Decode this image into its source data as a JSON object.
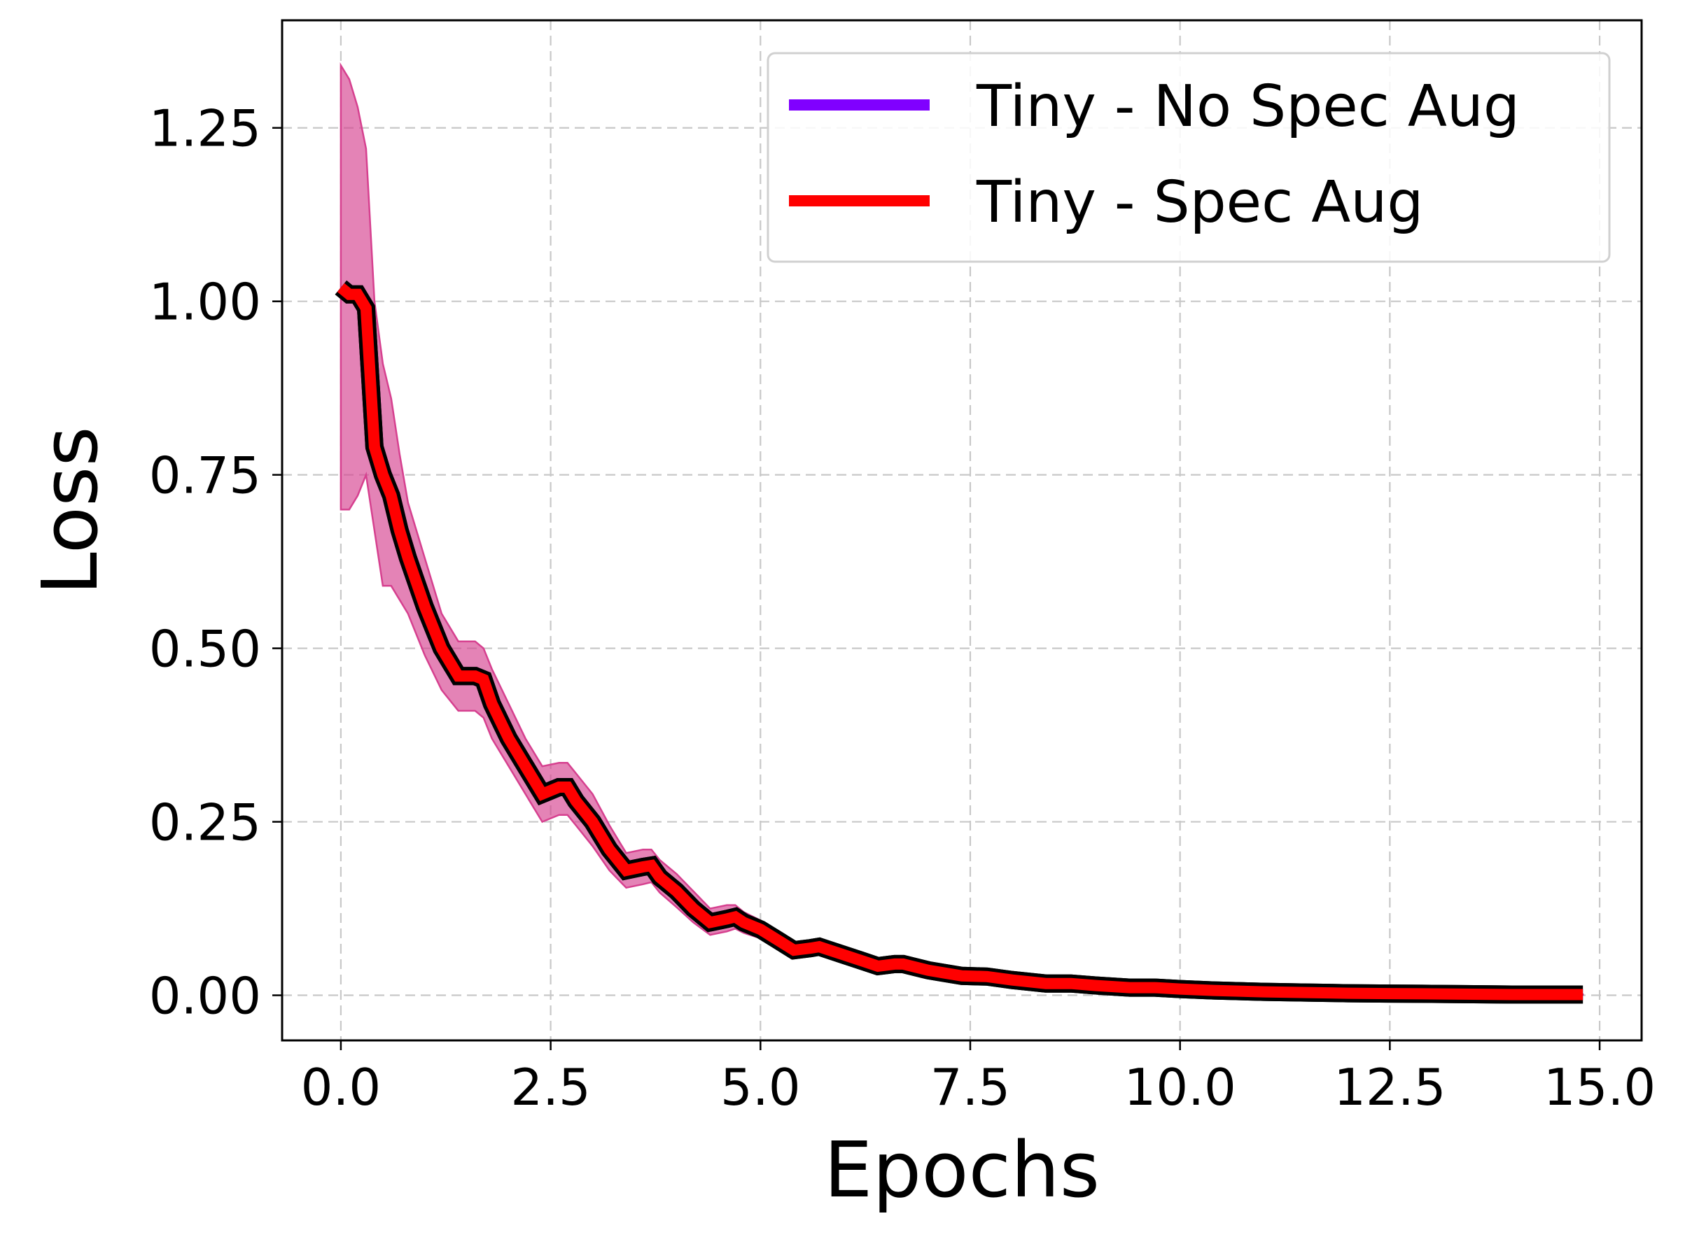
{
  "chart_data": {
    "type": "line",
    "xlabel": "Epochs",
    "ylabel": "Loss",
    "xlim": [
      -0.7,
      15.5
    ],
    "ylim": [
      -0.065,
      1.405
    ],
    "xticks": [
      0.0,
      2.5,
      5.0,
      7.5,
      10.0,
      12.5,
      15.0
    ],
    "xtick_labels": [
      "0.0",
      "2.5",
      "5.0",
      "7.5",
      "10.0",
      "12.5",
      "15.0"
    ],
    "yticks": [
      0.0,
      0.25,
      0.5,
      0.75,
      1.0,
      1.25
    ],
    "ytick_labels": [
      "0.00",
      "0.25",
      "0.50",
      "0.75",
      "1.00",
      "1.25"
    ],
    "grid": true,
    "legend_position": "top-right",
    "series": [
      {
        "name": "Tiny - No Spec Aug",
        "color": "#8000ff",
        "x": [
          0.0,
          0.1,
          0.2,
          0.3,
          0.4,
          0.5,
          0.6,
          0.7,
          0.8,
          1.0,
          1.2,
          1.4,
          1.6,
          1.7,
          1.8,
          2.0,
          2.2,
          2.4,
          2.6,
          2.7,
          2.8,
          3.0,
          3.2,
          3.4,
          3.6,
          3.7,
          3.8,
          4.0,
          4.2,
          4.4,
          4.6,
          4.7,
          4.8,
          5.0,
          5.2,
          5.4,
          5.6,
          5.7,
          5.8,
          6.0,
          6.2,
          6.4,
          6.6,
          6.7,
          6.8,
          7.0,
          7.2,
          7.4,
          7.7,
          8.0,
          8.4,
          8.7,
          9.0,
          9.4,
          9.7,
          10.0,
          10.4,
          11.0,
          11.5,
          12.0,
          12.5,
          13.0,
          13.5,
          14.0,
          14.5,
          14.8
        ],
        "y": [
          1.02,
          1.01,
          1.01,
          0.99,
          0.79,
          0.75,
          0.72,
          0.67,
          0.63,
          0.56,
          0.5,
          0.46,
          0.46,
          0.455,
          0.42,
          0.37,
          0.33,
          0.29,
          0.3,
          0.3,
          0.28,
          0.25,
          0.21,
          0.18,
          0.185,
          0.187,
          0.17,
          0.15,
          0.125,
          0.105,
          0.11,
          0.113,
          0.105,
          0.095,
          0.08,
          0.065,
          0.068,
          0.07,
          0.066,
          0.058,
          0.05,
          0.042,
          0.045,
          0.045,
          0.042,
          0.036,
          0.032,
          0.028,
          0.027,
          0.022,
          0.017,
          0.017,
          0.014,
          0.011,
          0.011,
          0.009,
          0.007,
          0.005,
          0.004,
          0.003,
          0.0025,
          0.002,
          0.0015,
          0.001,
          0.001,
          0.001
        ]
      },
      {
        "name": "Tiny - Spec Aug",
        "color": "#ff0000",
        "x": [
          0.0,
          0.1,
          0.2,
          0.3,
          0.4,
          0.5,
          0.6,
          0.7,
          0.8,
          1.0,
          1.2,
          1.4,
          1.6,
          1.7,
          1.8,
          2.0,
          2.2,
          2.4,
          2.6,
          2.7,
          2.8,
          3.0,
          3.2,
          3.4,
          3.6,
          3.7,
          3.8,
          4.0,
          4.2,
          4.4,
          4.6,
          4.7,
          4.8,
          5.0,
          5.2,
          5.4,
          5.6,
          5.7,
          5.8,
          6.0,
          6.2,
          6.4,
          6.6,
          6.7,
          6.8,
          7.0,
          7.2,
          7.4,
          7.7,
          8.0,
          8.4,
          8.7,
          9.0,
          9.4,
          9.7,
          10.0,
          10.4,
          11.0,
          11.5,
          12.0,
          12.5,
          13.0,
          13.5,
          14.0,
          14.5,
          14.8
        ],
        "y": [
          1.02,
          1.01,
          1.01,
          0.99,
          0.79,
          0.75,
          0.72,
          0.67,
          0.63,
          0.56,
          0.5,
          0.46,
          0.46,
          0.455,
          0.42,
          0.37,
          0.33,
          0.29,
          0.3,
          0.3,
          0.28,
          0.25,
          0.21,
          0.18,
          0.185,
          0.187,
          0.17,
          0.15,
          0.125,
          0.105,
          0.11,
          0.113,
          0.105,
          0.095,
          0.08,
          0.065,
          0.068,
          0.07,
          0.066,
          0.058,
          0.05,
          0.042,
          0.045,
          0.045,
          0.042,
          0.036,
          0.032,
          0.028,
          0.027,
          0.022,
          0.017,
          0.017,
          0.014,
          0.011,
          0.011,
          0.009,
          0.007,
          0.005,
          0.004,
          0.003,
          0.0025,
          0.002,
          0.0015,
          0.001,
          0.001,
          0.001
        ],
        "band_color": "#d6408f",
        "band_upper": [
          1.34,
          1.32,
          1.28,
          1.22,
          1.0,
          0.91,
          0.86,
          0.78,
          0.71,
          0.63,
          0.55,
          0.51,
          0.51,
          0.5,
          0.47,
          0.42,
          0.37,
          0.33,
          0.335,
          0.335,
          0.32,
          0.29,
          0.245,
          0.205,
          0.21,
          0.21,
          0.195,
          0.175,
          0.15,
          0.125,
          0.13,
          0.13,
          0.12,
          0.108,
          0.092,
          0.074,
          0.076,
          0.077,
          0.073,
          0.065,
          0.056,
          0.048,
          0.05,
          0.05,
          0.047,
          0.04,
          0.036,
          0.031,
          0.03,
          0.025,
          0.019,
          0.019,
          0.016,
          0.013,
          0.012,
          0.01,
          0.008,
          0.006,
          0.005,
          0.004,
          0.003,
          0.0025,
          0.002,
          0.0015,
          0.0012,
          0.0012
        ],
        "band_lower": [
          0.7,
          0.7,
          0.72,
          0.75,
          0.67,
          0.59,
          0.59,
          0.57,
          0.55,
          0.49,
          0.44,
          0.41,
          0.41,
          0.4,
          0.37,
          0.33,
          0.29,
          0.25,
          0.26,
          0.26,
          0.245,
          0.215,
          0.18,
          0.155,
          0.16,
          0.163,
          0.148,
          0.127,
          0.105,
          0.087,
          0.092,
          0.096,
          0.09,
          0.082,
          0.068,
          0.055,
          0.06,
          0.063,
          0.059,
          0.051,
          0.044,
          0.036,
          0.04,
          0.04,
          0.037,
          0.032,
          0.028,
          0.025,
          0.024,
          0.019,
          0.015,
          0.015,
          0.012,
          0.009,
          0.01,
          0.008,
          0.006,
          0.004,
          0.003,
          0.002,
          0.002,
          0.0015,
          0.001,
          0.0008,
          0.0008,
          0.0008
        ]
      }
    ]
  }
}
